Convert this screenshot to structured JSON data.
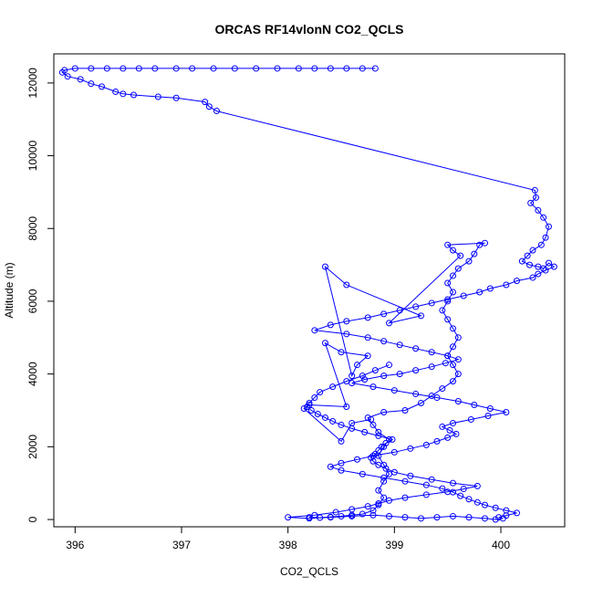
{
  "chart_data": {
    "type": "line",
    "title": "ORCAS RF14vlonN CO2_QCLS",
    "xlabel": "CO2_QCLS",
    "ylabel": "Altitude (m)",
    "xlim": [
      395.8,
      400.6
    ],
    "ylim": [
      -200,
      12800
    ],
    "xticks": [
      396,
      397,
      398,
      399,
      400
    ],
    "yticks": [
      0,
      2000,
      4000,
      6000,
      8000,
      10000,
      12000
    ],
    "grid": false,
    "legend": "none",
    "marker": "open-circle",
    "color": "#0000ff",
    "series": [
      {
        "x": [
          398.82,
          398.7,
          398.55,
          398.4,
          398.25,
          398.1,
          397.9,
          397.7,
          397.5,
          397.3,
          397.1,
          396.95,
          396.75,
          396.6,
          396.45,
          396.3,
          396.15,
          396.0,
          395.9,
          395.88,
          395.93,
          396.05,
          396.15,
          396.25,
          396.38,
          396.45,
          396.55,
          396.78,
          396.95,
          397.22,
          397.26,
          397.33,
          400.32,
          400.33,
          400.28,
          400.35,
          400.4,
          400.45,
          400.42,
          400.38,
          400.3,
          400.25,
          400.2,
          400.27,
          400.35,
          400.4,
          400.45,
          400.5,
          400.42,
          400.35,
          400.3,
          400.15,
          400.05,
          399.9,
          399.8,
          399.65,
          399.5,
          399.35,
          399.2,
          399.05,
          398.9,
          398.75,
          398.55,
          398.4,
          398.25,
          398.55,
          398.75,
          398.9,
          399.05,
          399.2,
          399.35,
          399.5,
          399.6,
          399.48,
          399.35,
          399.2,
          399.05,
          398.9,
          398.72,
          398.6,
          398.8,
          399.0,
          399.2,
          399.4,
          399.6,
          399.75,
          399.9,
          400.05,
          399.88,
          399.72,
          399.55,
          399.45,
          399.52,
          399.58,
          399.5,
          399.4,
          399.3,
          399.15,
          399.0,
          398.8,
          398.65,
          398.5,
          398.4,
          398.5,
          398.7,
          398.9,
          399.1,
          399.3,
          399.45,
          399.55,
          399.62,
          399.7,
          399.78,
          399.85,
          399.95,
          400.05,
          400.15,
          400.05,
          399.98,
          400.02,
          399.95,
          399.85,
          399.7,
          399.55,
          399.4,
          399.25,
          399.1,
          398.95,
          398.8,
          398.6,
          398.4,
          398.2,
          398.0,
          398.25,
          398.45,
          398.6,
          398.75,
          398.85,
          398.95,
          399.1,
          399.3,
          399.5,
          399.65,
          399.78,
          399.55,
          399.35,
          399.15,
          399.0,
          398.92,
          398.85,
          398.8,
          398.78,
          398.82,
          398.85,
          398.88,
          398.92,
          398.98,
          398.85,
          398.72,
          398.6,
          398.5,
          398.42,
          398.35,
          398.28,
          398.22,
          398.18,
          398.2,
          398.25,
          398.3,
          398.42,
          398.55,
          398.7,
          398.82,
          398.95
        ],
        "y": [
          12400,
          12400,
          12400,
          12400,
          12400,
          12400,
          12400,
          12400,
          12400,
          12400,
          12400,
          12400,
          12400,
          12400,
          12400,
          12400,
          12400,
          12400,
          12350,
          12290,
          12180,
          12100,
          11980,
          11900,
          11760,
          11700,
          11670,
          11620,
          11590,
          11480,
          11350,
          11230,
          9050,
          8850,
          8700,
          8500,
          8300,
          8050,
          7750,
          7550,
          7400,
          7250,
          7100,
          7000,
          6950,
          6900,
          7050,
          6950,
          6850,
          6750,
          6650,
          6560,
          6450,
          6350,
          6250,
          6150,
          6050,
          5950,
          5850,
          5750,
          5650,
          5550,
          5450,
          5350,
          5200,
          5100,
          5000,
          4900,
          4800,
          4700,
          4600,
          4500,
          4400,
          4300,
          4200,
          4100,
          4000,
          3950,
          3850,
          3750,
          3650,
          3550,
          3450,
          3350,
          3250,
          3150,
          3050,
          2950,
          2850,
          2750,
          2650,
          2550,
          2450,
          2350,
          2250,
          2150,
          2050,
          1950,
          1850,
          1750,
          1650,
          1550,
          1450,
          1350,
          1250,
          1150,
          1050,
          950,
          850,
          750,
          650,
          560,
          470,
          400,
          320,
          250,
          180,
          110,
          60,
          30,
          0,
          30,
          60,
          90,
          60,
          30,
          60,
          90,
          120,
          90,
          60,
          30,
          60,
          120,
          200,
          280,
          360,
          440,
          520,
          600,
          680,
          760,
          840,
          920,
          1000,
          1100,
          1200,
          1300,
          1400,
          1500,
          1600,
          1700,
          1800,
          1900,
          2000,
          2100,
          2200,
          2300,
          2400,
          2500,
          2600,
          2700,
          2800,
          2900,
          3000,
          3100,
          3200,
          3350,
          3500,
          3650,
          3800,
          3950,
          4100,
          4250
        ],
        "cluster": [
          [
            398.2,
            60
          ],
          [
            398.3,
            50
          ],
          [
            398.4,
            70
          ],
          [
            398.5,
            90
          ],
          [
            398.6,
            120
          ],
          [
            398.7,
            150
          ],
          [
            398.8,
            250
          ],
          [
            398.85,
            400
          ],
          [
            398.9,
            600
          ],
          [
            398.85,
            800
          ],
          [
            398.9,
            1050
          ],
          [
            398.95,
            1250
          ],
          [
            398.9,
            1500
          ],
          [
            398.85,
            1750
          ],
          [
            398.9,
            2000
          ],
          [
            398.95,
            2200
          ],
          [
            398.85,
            2400
          ],
          [
            398.8,
            2600
          ],
          [
            398.75,
            2800
          ],
          [
            398.9,
            2950
          ],
          [
            399.1,
            3000
          ],
          [
            399.25,
            3200
          ],
          [
            399.35,
            3400
          ],
          [
            399.45,
            3600
          ],
          [
            399.55,
            3800
          ],
          [
            399.6,
            4000
          ],
          [
            399.55,
            4250
          ],
          [
            399.5,
            4500
          ],
          [
            399.55,
            4750
          ],
          [
            399.6,
            5000
          ],
          [
            399.55,
            5250
          ],
          [
            399.5,
            5500
          ],
          [
            399.45,
            5750
          ],
          [
            399.5,
            6000
          ],
          [
            399.55,
            6250
          ],
          [
            399.5,
            6500
          ],
          [
            399.55,
            6700
          ],
          [
            399.6,
            6900
          ],
          [
            399.7,
            7100
          ],
          [
            399.75,
            7300
          ],
          [
            399.8,
            7550
          ],
          [
            399.85,
            7600
          ],
          [
            399.5,
            7550
          ],
          [
            399.55,
            7400
          ],
          [
            399.62,
            7250
          ],
          [
            398.95,
            5400
          ],
          [
            399.25,
            5600
          ],
          [
            398.55,
            6450
          ],
          [
            398.35,
            6950
          ],
          [
            398.6,
            3950
          ],
          [
            398.65,
            4250
          ],
          [
            398.75,
            4500
          ],
          [
            398.5,
            4600
          ],
          [
            398.35,
            4850
          ],
          [
            398.55,
            3100
          ],
          [
            398.2,
            3150
          ],
          [
            398.15,
            3050
          ],
          [
            398.5,
            2150
          ],
          [
            398.6,
            2650
          ],
          [
            398.78,
            2750
          ]
        ]
      }
    ]
  }
}
